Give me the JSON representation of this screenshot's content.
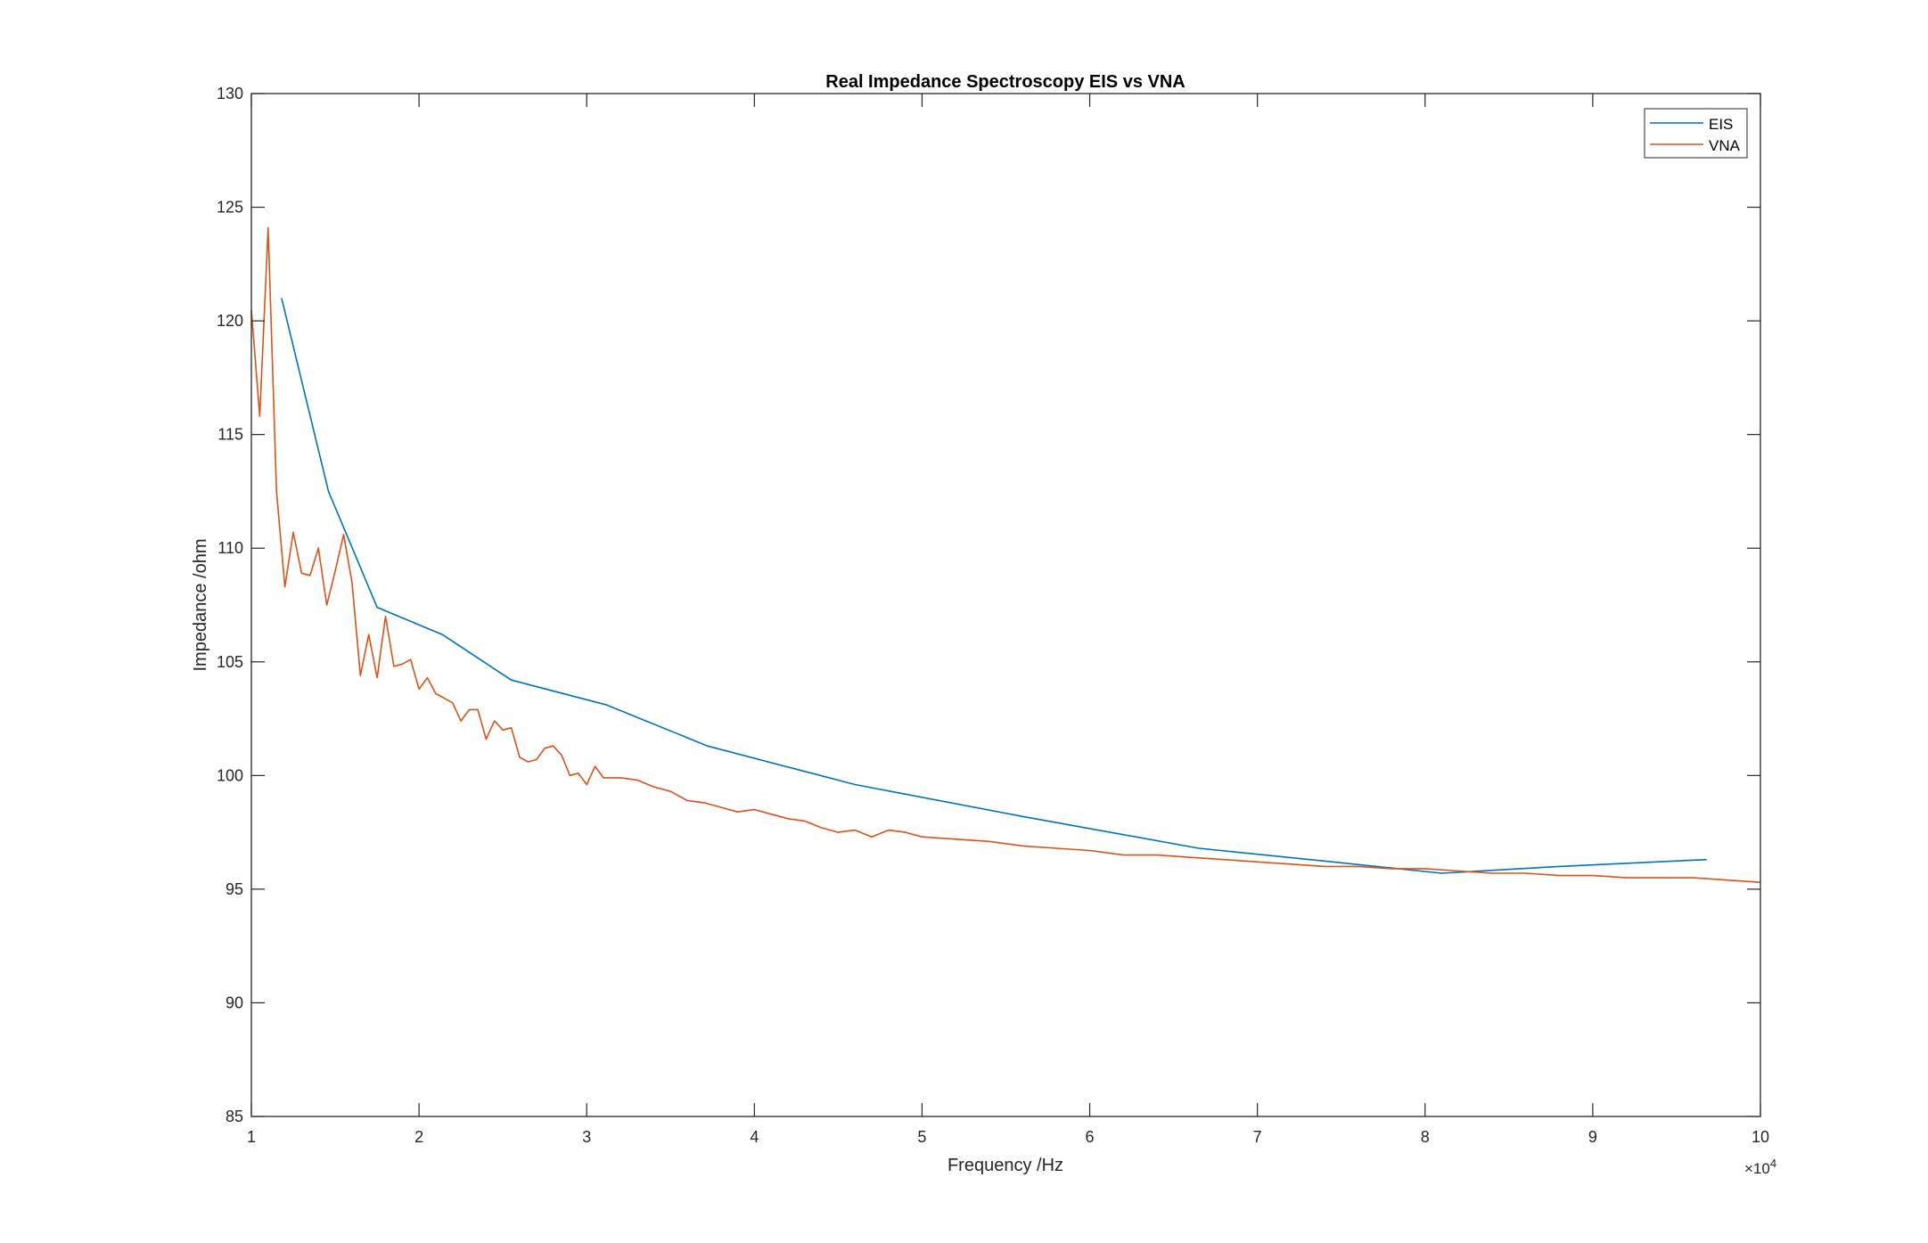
{
  "chart_data": {
    "type": "line",
    "title": "Real Impedance Spectroscopy EIS vs VNA",
    "xlabel": "Frequency /Hz",
    "ylabel": "Impedance /ohm",
    "xlim": [
      1,
      10
    ],
    "ylim": [
      85,
      130
    ],
    "x_exponent_label": "×10",
    "x_exponent_power": "4",
    "xticks": [
      1,
      2,
      3,
      4,
      5,
      6,
      7,
      8,
      9,
      10
    ],
    "xtick_labels": [
      "1",
      "2",
      "3",
      "4",
      "5",
      "6",
      "7",
      "8",
      "9",
      "10"
    ],
    "yticks": [
      85,
      90,
      95,
      100,
      105,
      110,
      115,
      120,
      125,
      130
    ],
    "ytick_labels": [
      "85",
      "90",
      "95",
      "100",
      "105",
      "110",
      "115",
      "120",
      "125",
      "130"
    ],
    "grid": false,
    "legend_position": "top-right",
    "series": [
      {
        "name": "EIS",
        "color": "#0072BD",
        "x": [
          1.18,
          1.46,
          1.75,
          2.14,
          2.55,
          3.12,
          3.72,
          4.6,
          5.6,
          6.65,
          7.45,
          8.1,
          8.8,
          9.68
        ],
        "y": [
          121,
          112.5,
          107.4,
          106.2,
          104.2,
          103.1,
          101.3,
          99.6,
          98.2,
          96.8,
          96.2,
          95.7,
          96.0,
          96.3
        ]
      },
      {
        "name": "VNA",
        "color": "#D95319",
        "x": [
          1.0,
          1.05,
          1.1,
          1.15,
          1.2,
          1.25,
          1.3,
          1.35,
          1.4,
          1.45,
          1.5,
          1.55,
          1.6,
          1.65,
          1.7,
          1.75,
          1.8,
          1.85,
          1.9,
          1.95,
          2.0,
          2.05,
          2.1,
          2.15,
          2.2,
          2.25,
          2.3,
          2.35,
          2.4,
          2.45,
          2.5,
          2.55,
          2.6,
          2.65,
          2.7,
          2.75,
          2.8,
          2.85,
          2.9,
          2.95,
          3.0,
          3.05,
          3.1,
          3.2,
          3.3,
          3.4,
          3.5,
          3.6,
          3.7,
          3.8,
          3.9,
          4.0,
          4.1,
          4.2,
          4.3,
          4.4,
          4.5,
          4.6,
          4.7,
          4.8,
          4.9,
          5.0,
          5.2,
          5.4,
          5.6,
          5.8,
          6.0,
          6.2,
          6.4,
          6.6,
          6.8,
          7.0,
          7.2,
          7.4,
          7.6,
          7.8,
          8.0,
          8.2,
          8.4,
          8.6,
          8.8,
          9.0,
          9.2,
          9.4,
          9.6,
          9.8,
          10.0
        ],
        "y": [
          120.5,
          115.8,
          124.1,
          112.5,
          108.3,
          110.7,
          108.9,
          108.8,
          110.0,
          107.5,
          109.0,
          110.6,
          108.5,
          104.4,
          106.2,
          104.3,
          107.0,
          104.8,
          104.9,
          105.1,
          103.8,
          104.3,
          103.6,
          103.4,
          103.2,
          102.4,
          102.9,
          102.9,
          101.6,
          102.4,
          102.0,
          102.1,
          100.8,
          100.6,
          100.7,
          101.2,
          101.3,
          100.9,
          100.0,
          100.1,
          99.6,
          100.4,
          99.9,
          99.9,
          99.8,
          99.5,
          99.3,
          98.9,
          98.8,
          98.6,
          98.4,
          98.5,
          98.3,
          98.1,
          98.0,
          97.7,
          97.5,
          97.6,
          97.3,
          97.6,
          97.5,
          97.3,
          97.2,
          97.1,
          96.9,
          96.8,
          96.7,
          96.5,
          96.5,
          96.4,
          96.3,
          96.2,
          96.1,
          96.0,
          96.0,
          95.9,
          95.9,
          95.8,
          95.7,
          95.7,
          95.6,
          95.6,
          95.5,
          95.5,
          95.5,
          95.4,
          95.3
        ]
      }
    ]
  }
}
